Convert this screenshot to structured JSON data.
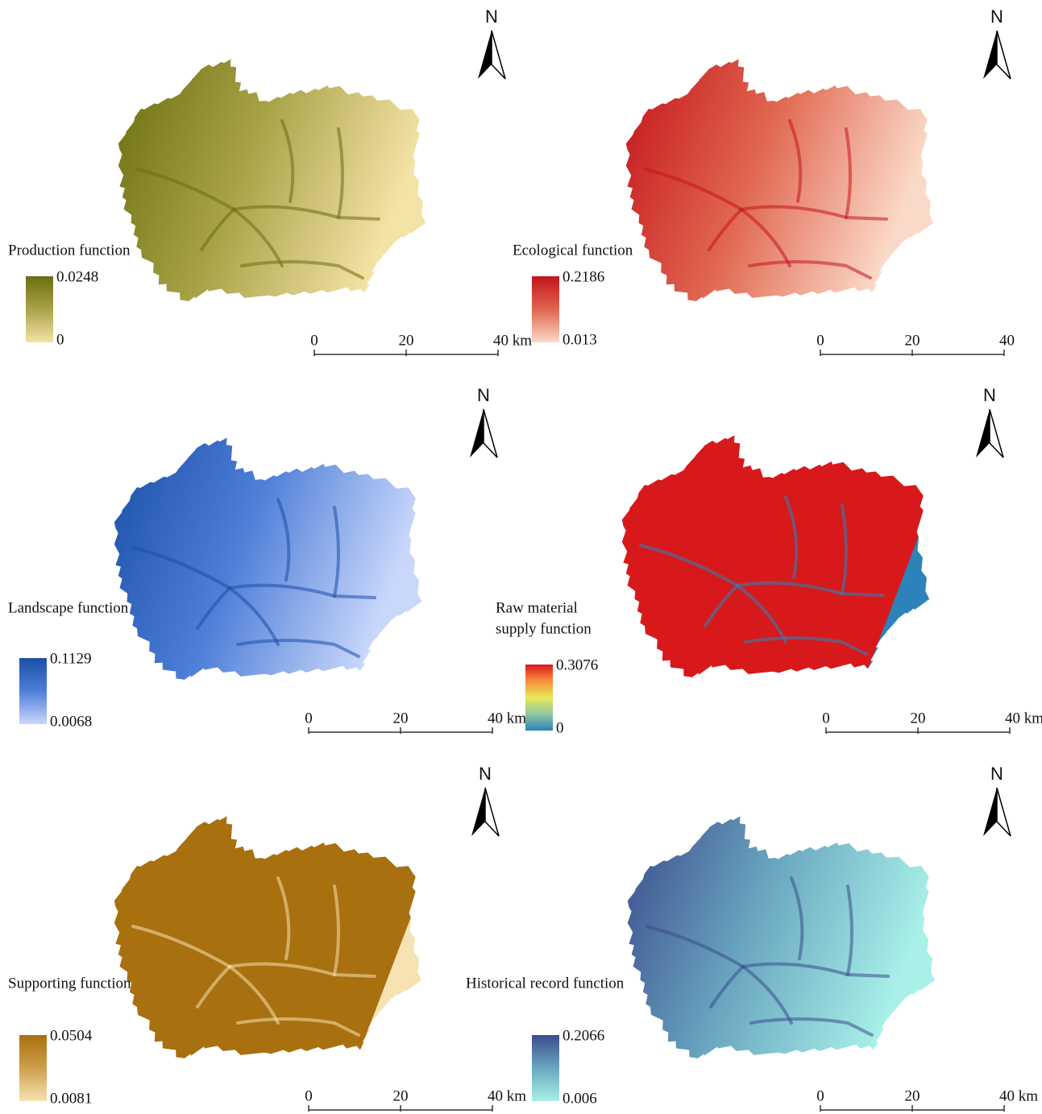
{
  "panels": [
    {
      "title": "Production function",
      "legend": {
        "max": "0.0248",
        "min": "0",
        "colors": [
          "#6b6e10",
          "#a9a348",
          "#f3e3a6"
        ]
      },
      "scale": [
        "0",
        "20",
        "40 km"
      ],
      "north": "N"
    },
    {
      "title": "Ecological function",
      "legend": {
        "max": "0.2186",
        "min": "0.013",
        "colors": [
          "#c4141b",
          "#e0664f",
          "#fbd9c8"
        ]
      },
      "scale": [
        "0",
        "20",
        "40"
      ],
      "north": "N"
    },
    {
      "title": "Landscape function",
      "legend": {
        "max": "0.1129",
        "min": "0.0068",
        "colors": [
          "#1a4fa8",
          "#4f7fd8",
          "#c9d7fb"
        ]
      },
      "scale": [
        "0",
        "20",
        "40 km"
      ],
      "north": "N"
    },
    {
      "title": [
        "Raw material",
        "supply function"
      ],
      "legend": {
        "max": "0.3076",
        "min": "0",
        "colors": [
          "#d7191c",
          "#f98e3a",
          "#e8e85a",
          "#8fc7a0",
          "#2b83ba"
        ]
      },
      "scale": [
        "0",
        "20",
        "40 km"
      ],
      "north": "N"
    },
    {
      "title": "Supporting function",
      "legend": {
        "max": "0.0504",
        "min": "0.0081",
        "colors": [
          "#a8700f",
          "#cf9f4c",
          "#f6e2b2"
        ]
      },
      "scale": [
        "0",
        "20",
        "40 km"
      ],
      "north": "N"
    },
    {
      "title": "Historical record function",
      "legend": {
        "max": "0.2066",
        "min": "0.006",
        "colors": [
          "#3b4c8c",
          "#6aa7c0",
          "#a8f0e8"
        ]
      },
      "scale": [
        "0",
        "20",
        "40 km"
      ],
      "north": "N"
    }
  ]
}
